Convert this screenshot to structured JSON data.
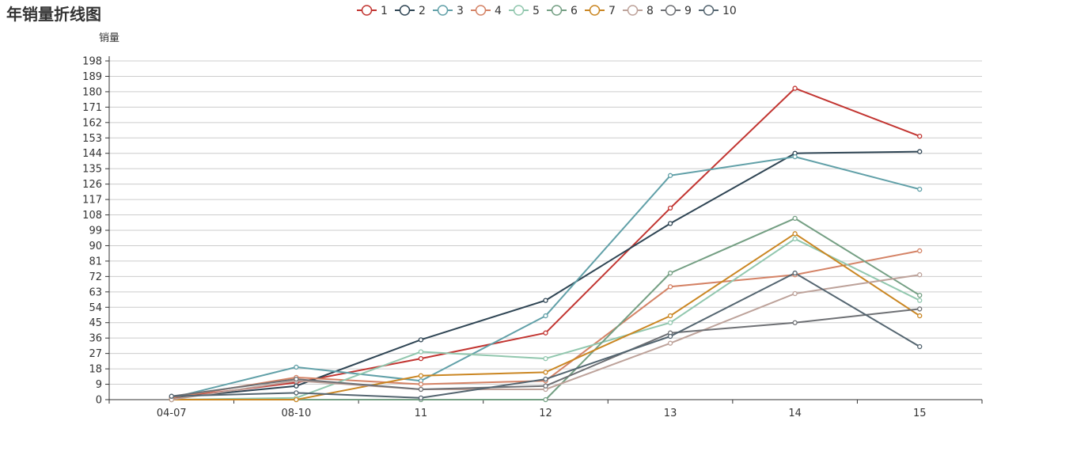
{
  "chart_data": {
    "type": "line",
    "title": "年销量折线图",
    "ylabel": "销量",
    "xlabel": "",
    "categories": [
      "04-07",
      "08-10",
      "11",
      "12",
      "13",
      "14",
      "15"
    ],
    "yticks": [
      0,
      9,
      18,
      27,
      36,
      45,
      54,
      63,
      72,
      81,
      90,
      99,
      108,
      117,
      126,
      135,
      144,
      153,
      162,
      171,
      180,
      189,
      198
    ],
    "ylim": [
      0,
      198
    ],
    "grid": true,
    "legend_position": "top-center",
    "series": [
      {
        "name": "1",
        "color": "#c23531",
        "values": [
          1,
          10,
          24,
          39,
          112,
          182,
          154
        ]
      },
      {
        "name": "2",
        "color": "#2f4554",
        "values": [
          1,
          8,
          35,
          58,
          103,
          144,
          145
        ]
      },
      {
        "name": "3",
        "color": "#61a0a8",
        "values": [
          1,
          19,
          11,
          49,
          131,
          142,
          123
        ]
      },
      {
        "name": "4",
        "color": "#d48265",
        "values": [
          1,
          13,
          9,
          11,
          66,
          73,
          87
        ]
      },
      {
        "name": "5",
        "color": "#91c7ae",
        "values": [
          0,
          1,
          28,
          24,
          45,
          94,
          58
        ]
      },
      {
        "name": "6",
        "color": "#749f83",
        "values": [
          0,
          0,
          0,
          0,
          74,
          106,
          61
        ]
      },
      {
        "name": "7",
        "color": "#ca8622",
        "values": [
          0,
          0,
          14,
          16,
          49,
          97,
          49
        ]
      },
      {
        "name": "8",
        "color": "#bda29a",
        "values": [
          0,
          11,
          6,
          6,
          33,
          62,
          73
        ]
      },
      {
        "name": "9",
        "color": "#6e7074",
        "values": [
          2,
          12,
          6,
          8,
          39,
          45,
          53
        ]
      },
      {
        "name": "10",
        "color": "#546570",
        "values": [
          2,
          4,
          1,
          12,
          37,
          74,
          31
        ]
      }
    ]
  }
}
